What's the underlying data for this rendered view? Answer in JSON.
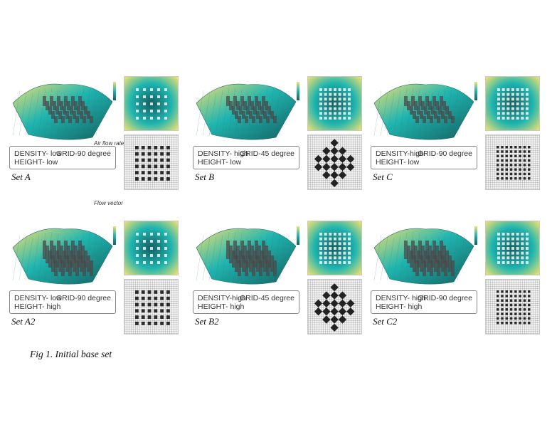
{
  "sets": [
    {
      "id": "A",
      "label": "Set A",
      "density": "DENSITY- low",
      "height": "HEIGHT- low",
      "grid": "GRID-90 degree",
      "pattern": "ortho"
    },
    {
      "id": "B",
      "label": "Set B",
      "density": "DENSITY- high",
      "height": "HEIGHT- low",
      "grid": "GRID-45 degree",
      "pattern": "diag"
    },
    {
      "id": "C",
      "label": "Set C",
      "density": "DENSITY-high",
      "height": "HEIGHT- low",
      "grid": "GRID-90 degree",
      "pattern": "ortho-dense"
    },
    {
      "id": "A2",
      "label": "Set A2",
      "density": "DENSITY- low",
      "height": "HEIGHT- high",
      "grid": "GRID-90 degree",
      "pattern": "ortho"
    },
    {
      "id": "B2",
      "label": "Set B2",
      "density": "DENSITY-high",
      "height": "HEIGHT- high",
      "grid": "GRID-45 degree",
      "pattern": "diag"
    },
    {
      "id": "C2",
      "label": "Set C2",
      "density": "DENSITY- high",
      "height": "HEIGHT- high",
      "grid": "GRID-90 degree",
      "pattern": "ortho-dense"
    }
  ],
  "annotations": {
    "air_flow_rate": "Air flow rate",
    "flow_vector": "Flow vector"
  },
  "caption": "Fig 1. Initial base set",
  "colors": {
    "teal": "#1fb5b0",
    "dark_teal": "#126060",
    "yellow": "#f0e070",
    "mesh": "#3a7a7a",
    "block": "#4a4a4a"
  }
}
